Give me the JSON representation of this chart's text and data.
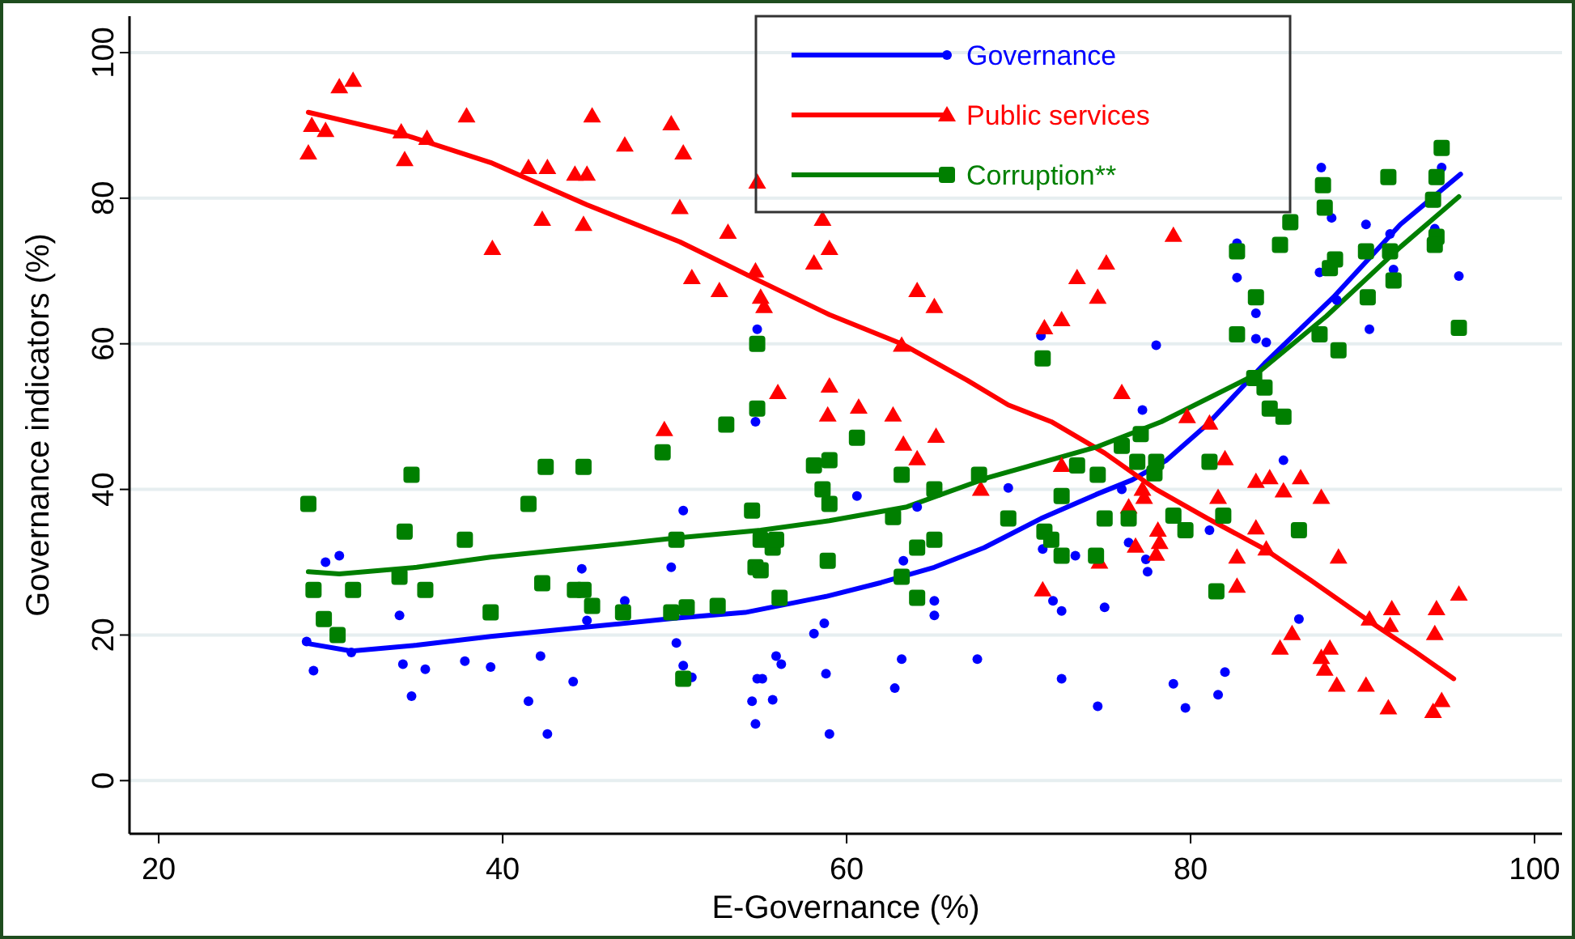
{
  "chart_data": {
    "type": "scatter",
    "xlabel": "E-Governance (%)",
    "ylabel": "Governance indicators (%)",
    "xlim": [
      18.3,
      101.6
    ],
    "ylim": [
      -7.3,
      105
    ],
    "xticks": [
      20,
      40,
      60,
      80,
      100
    ],
    "yticks": [
      0,
      20,
      40,
      60,
      80,
      100
    ],
    "grid": "y",
    "legend": "top",
    "series": [
      {
        "name": "Governance",
        "color": "#0000ff",
        "marker": "circle",
        "x": [
          28.6,
          29.0,
          29.7,
          30.5,
          31.2,
          34.0,
          34.2,
          34.7,
          35.5,
          37.8,
          39.3,
          42.2,
          41.5,
          42.6,
          44.1,
          44.6,
          44.9,
          47.1,
          49.8,
          50.5,
          50.1,
          50.5,
          51.0,
          54.5,
          54.7,
          54.8,
          54.7,
          54.8,
          55.9,
          56.2,
          55.1,
          55.7,
          58.8,
          59.0,
          58.1,
          58.7,
          60.6,
          64.1,
          63.3,
          65.1,
          65.1,
          63.2,
          62.8,
          67.6,
          69.4,
          71.3,
          71.4,
          72.0,
          72.5,
          73.3,
          75.0,
          72.5,
          74.6,
          76.0,
          76.4,
          77.4,
          77.2,
          78.0,
          77.5,
          79.0,
          79.7,
          81.6,
          81.1,
          82.0,
          82.7,
          82.7,
          83.8,
          83.8,
          84.4,
          85.4,
          86.3,
          87.5,
          87.6,
          88.2,
          88.5,
          90.2,
          90.4,
          91.6,
          91.8,
          94.2,
          94.6,
          95.6
        ],
        "values": [
          19.1,
          15.1,
          30.0,
          30.9,
          17.6,
          22.7,
          16.0,
          11.6,
          15.3,
          16.4,
          15.6,
          17.1,
          10.9,
          6.4,
          13.6,
          29.1,
          22.0,
          24.7,
          29.3,
          37.1,
          18.9,
          15.8,
          14.2,
          10.9,
          7.8,
          14.0,
          49.3,
          62.0,
          17.1,
          16.0,
          14.0,
          11.1,
          14.7,
          6.4,
          20.2,
          21.6,
          39.1,
          37.6,
          30.2,
          24.7,
          22.7,
          16.7,
          12.7,
          16.7,
          40.2,
          61.1,
          31.8,
          24.7,
          23.3,
          30.9,
          23.8,
          14.0,
          10.2,
          40.0,
          32.7,
          30.4,
          50.9,
          59.8,
          28.7,
          13.3,
          10.0,
          11.8,
          34.4,
          14.9,
          69.1,
          73.8,
          64.2,
          60.7,
          60.2,
          44.0,
          22.2,
          69.8,
          84.2,
          77.3,
          66.0,
          76.4,
          62.0,
          75.1,
          70.2,
          75.8,
          84.2,
          69.3
        ]
      },
      {
        "color": "#0000ff",
        "type": "line",
        "x": [
          28.5,
          31.2,
          35,
          39.3,
          44.9,
          50,
          54.1,
          58.8,
          62,
          65.1,
          68,
          71.3,
          74.5,
          76.6,
          78.6,
          81,
          84.3,
          88.3,
          92.2,
          95.7
        ],
        "values": [
          18.9,
          17.8,
          18.6,
          19.8,
          21.1,
          22.3,
          23.1,
          25.3,
          27.2,
          29.3,
          32,
          36.0,
          39.3,
          41.3,
          44.0,
          49,
          57.3,
          66.4,
          76.4,
          83.3
        ]
      },
      {
        "name": "Public services",
        "color": "#ff0000",
        "marker": "triangle",
        "x": [
          28.7,
          28.9,
          29.7,
          30.5,
          31.3,
          34.1,
          34.3,
          35.6,
          37.9,
          39.4,
          41.5,
          42.6,
          42.3,
          44.2,
          44.9,
          44.7,
          45.2,
          47.1,
          49.4,
          49.8,
          50.5,
          50.3,
          51.0,
          52.6,
          53.1,
          54.8,
          54.7,
          55.0,
          55.2,
          56.0,
          58.1,
          59.0,
          58.6,
          59.0,
          58.9,
          60.7,
          62.7,
          63.3,
          63.2,
          64.1,
          65.1,
          65.2,
          64.1,
          67.8,
          71.4,
          71.5,
          72.5,
          72.5,
          73.4,
          74.6,
          75.1,
          74.7,
          76.0,
          76.4,
          76.8,
          77.2,
          77.3,
          78.0,
          78.1,
          78.2,
          79.0,
          79.8,
          81.1,
          81.6,
          82.0,
          82.7,
          82.7,
          83.8,
          83.8,
          84.4,
          84.6,
          85.4,
          86.4,
          85.2,
          85.9,
          87.6,
          87.6,
          87.8,
          88.1,
          88.5,
          88.6,
          90.2,
          90.4,
          91.5,
          91.6,
          91.7,
          94.2,
          94.1,
          94.3,
          94.6,
          95.6
        ],
        "values": [
          86.2,
          90.0,
          89.3,
          95.3,
          96.2,
          89.1,
          85.3,
          88.2,
          91.3,
          73.1,
          84.2,
          84.2,
          77.1,
          83.3,
          83.3,
          76.4,
          91.3,
          87.3,
          48.2,
          90.2,
          86.2,
          78.7,
          69.1,
          67.3,
          75.3,
          82.2,
          70.0,
          66.4,
          65.1,
          53.3,
          71.1,
          73.1,
          77.1,
          54.2,
          50.2,
          51.3,
          50.2,
          46.2,
          59.8,
          67.3,
          65.1,
          47.3,
          44.2,
          40.0,
          26.2,
          62.2,
          63.3,
          43.3,
          69.1,
          66.4,
          71.1,
          30.0,
          53.3,
          37.6,
          32.2,
          40.0,
          38.9,
          31.1,
          34.4,
          32.7,
          74.9,
          50.0,
          49.1,
          38.9,
          44.2,
          30.7,
          26.7,
          41.1,
          34.7,
          31.8,
          41.6,
          39.8,
          41.6,
          18.2,
          20.2,
          38.9,
          16.9,
          15.3,
          18.2,
          13.1,
          30.7,
          13.1,
          22.2,
          10.0,
          21.3,
          23.6,
          20.2,
          9.5,
          23.6,
          11.0,
          25.6
        ]
      },
      {
        "color": "#ff0000",
        "type": "line",
        "x": [
          28.7,
          34.3,
          39.3,
          44.9,
          50.3,
          54.7,
          59,
          63.2,
          67,
          69.4,
          71.9,
          75,
          78.0,
          81,
          84.3,
          87,
          90.2,
          93,
          95.3
        ],
        "values": [
          91.8,
          88.7,
          84.9,
          79.1,
          74.0,
          68.9,
          64,
          60.0,
          55,
          51.6,
          49.3,
          45,
          40.0,
          36,
          31.8,
          27.5,
          22.2,
          17.8,
          14
        ]
      },
      {
        "name": "Corruption**",
        "color": "#007f00",
        "marker": "square",
        "x": [
          28.7,
          29.0,
          29.6,
          30.4,
          31.3,
          34.3,
          34.7,
          34.0,
          35.5,
          37.8,
          39.3,
          41.5,
          42.5,
          44.7,
          42.3,
          44.2,
          44.7,
          45.2,
          47.0,
          49.3,
          50.1,
          49.8,
          50.7,
          52.5,
          50.5,
          53.0,
          54.5,
          54.7,
          54.8,
          54.8,
          55.0,
          55.7,
          55.9,
          55.0,
          56.1,
          58.1,
          59.0,
          58.6,
          59.0,
          58.9,
          60.6,
          63.2,
          62.7,
          64.1,
          65.1,
          63.2,
          64.1,
          65.1,
          67.7,
          69.4,
          71.4,
          72.5,
          71.5,
          71.9,
          72.5,
          73.4,
          74.6,
          74.5,
          75.0,
          76.4,
          76.0,
          77.1,
          76.9,
          78.0,
          77.9,
          94.6,
          94.3,
          91.5,
          87.7,
          87.8,
          85.8,
          94.1,
          94.3,
          94.2,
          82.7,
          85.2,
          90.2,
          91.6,
          88.4,
          88.1,
          91.8,
          83.8,
          90.3,
          95.6,
          82.7,
          87.5,
          88.6,
          83.7,
          84.3,
          84.6,
          85.4,
          81.1,
          81.9,
          79.0,
          79.7,
          86.3,
          81.5
        ],
        "values": [
          38.0,
          26.2,
          22.2,
          20.0,
          26.2,
          34.2,
          42.0,
          28.0,
          26.2,
          33.1,
          23.1,
          38.0,
          43.1,
          43.1,
          27.1,
          26.2,
          26.2,
          24.0,
          23.1,
          45.1,
          33.1,
          23.1,
          23.8,
          24.0,
          14.0,
          48.9,
          37.1,
          29.3,
          60.0,
          51.1,
          33.1,
          32.0,
          33.1,
          28.9,
          25.1,
          43.3,
          44.0,
          40.0,
          38.0,
          30.2,
          47.1,
          42.0,
          36.2,
          32.0,
          33.1,
          28.0,
          25.1,
          40.0,
          42.0,
          36.0,
          58.0,
          39.1,
          34.2,
          33.1,
          30.9,
          43.3,
          42.0,
          30.9,
          36.0,
          36.0,
          46.0,
          47.6,
          43.8,
          43.8,
          42.2,
          86.9,
          82.9,
          82.9,
          81.8,
          78.7,
          76.7,
          79.8,
          74.7,
          73.6,
          72.7,
          73.6,
          72.7,
          72.7,
          71.6,
          70.4,
          68.7,
          66.4,
          66.4,
          62.2,
          61.3,
          61.3,
          59.1,
          55.3,
          54.0,
          51.1,
          50.0,
          43.8,
          36.4,
          36.4,
          34.4,
          34.4,
          26.0
        ]
      },
      {
        "color": "#007f00",
        "type": "line",
        "x": [
          28.7,
          30.5,
          35,
          39.3,
          45.6,
          50,
          55.0,
          59,
          63.5,
          68.2,
          74.5,
          78.3,
          83.8,
          87.9,
          92.2,
          95.6
        ],
        "values": [
          28.7,
          28.4,
          29.3,
          30.7,
          32.2,
          33.3,
          34.4,
          35.7,
          37.6,
          41.6,
          45.8,
          49.3,
          55.8,
          63.8,
          73.3,
          80.2
        ]
      }
    ]
  }
}
